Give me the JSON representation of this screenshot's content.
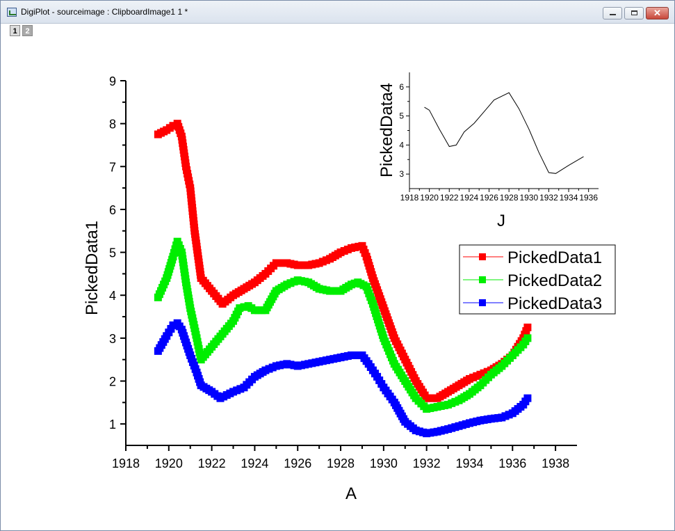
{
  "window": {
    "title": "DigiPlot - sourceimage : ClipboardImage1 1 *",
    "close_glyph": "✕",
    "page_tabs": [
      "1",
      "2"
    ]
  },
  "colors": {
    "PickedData1": "#ff0000",
    "PickedData2": "#00ee00",
    "PickedData3": "#0000ff",
    "PickedData4": "#000000"
  },
  "chart_data": [
    {
      "type": "line",
      "xlabel": "A",
      "ylabel": "PickedData1",
      "xlim": [
        1918,
        1939
      ],
      "ylim": [
        0.5,
        9
      ],
      "xticks": [
        1918,
        1920,
        1922,
        1924,
        1926,
        1928,
        1930,
        1932,
        1934,
        1936,
        1938
      ],
      "yticks": [
        1,
        2,
        3,
        4,
        5,
        6,
        7,
        8,
        9
      ],
      "legend": "right",
      "marker": "square",
      "series": [
        {
          "name": "PickedData1",
          "x": [
            1919.5,
            1919.9,
            1920.2,
            1920.4,
            1920.6,
            1920.8,
            1921.0,
            1921.2,
            1921.5,
            1922.0,
            1922.5,
            1923.0,
            1923.5,
            1924.0,
            1924.5,
            1925.0,
            1925.5,
            1926.0,
            1926.5,
            1927.0,
            1927.5,
            1928.0,
            1928.5,
            1929.0,
            1929.2,
            1929.5,
            1930.0,
            1930.5,
            1931.0,
            1931.5,
            1932.0,
            1932.5,
            1933.0,
            1933.5,
            1934.0,
            1934.5,
            1935.0,
            1935.5,
            1936.0,
            1936.5,
            1936.7
          ],
          "y": [
            7.75,
            7.85,
            7.95,
            8.0,
            7.7,
            7.0,
            6.5,
            5.5,
            4.4,
            4.1,
            3.8,
            4.0,
            4.15,
            4.3,
            4.5,
            4.75,
            4.75,
            4.7,
            4.7,
            4.75,
            4.85,
            5.0,
            5.1,
            5.15,
            4.9,
            4.4,
            3.7,
            3.0,
            2.5,
            2.0,
            1.6,
            1.6,
            1.75,
            1.9,
            2.05,
            2.15,
            2.25,
            2.4,
            2.6,
            3.0,
            3.25
          ]
        },
        {
          "name": "PickedData2",
          "x": [
            1919.5,
            1919.9,
            1920.2,
            1920.4,
            1920.6,
            1920.8,
            1921.0,
            1921.3,
            1921.5,
            1922.0,
            1922.5,
            1923.0,
            1923.3,
            1923.7,
            1924.0,
            1924.5,
            1925.0,
            1925.5,
            1926.0,
            1926.5,
            1927.0,
            1927.5,
            1928.0,
            1928.5,
            1928.8,
            1929.2,
            1929.5,
            1930.0,
            1930.5,
            1931.0,
            1931.5,
            1932.0,
            1932.5,
            1933.0,
            1933.5,
            1934.0,
            1934.5,
            1935.0,
            1935.5,
            1936.0,
            1936.5,
            1936.7
          ],
          "y": [
            3.95,
            4.4,
            4.9,
            5.25,
            5.0,
            4.3,
            3.7,
            3.0,
            2.5,
            2.8,
            3.1,
            3.4,
            3.7,
            3.75,
            3.65,
            3.65,
            4.1,
            4.25,
            4.35,
            4.3,
            4.15,
            4.1,
            4.1,
            4.25,
            4.3,
            4.2,
            3.8,
            3.0,
            2.4,
            2.0,
            1.6,
            1.35,
            1.4,
            1.45,
            1.55,
            1.7,
            1.9,
            2.15,
            2.35,
            2.6,
            2.85,
            3.0
          ]
        },
        {
          "name": "PickedData3",
          "x": [
            1919.5,
            1919.9,
            1920.2,
            1920.4,
            1920.6,
            1920.8,
            1921.0,
            1921.3,
            1921.5,
            1922.0,
            1922.4,
            1923.0,
            1923.5,
            1924.0,
            1924.5,
            1925.0,
            1925.5,
            1926.0,
            1926.5,
            1927.0,
            1927.5,
            1928.0,
            1928.5,
            1929.0,
            1929.3,
            1929.7,
            1930.0,
            1930.5,
            1931.0,
            1931.5,
            1932.0,
            1932.5,
            1933.0,
            1933.5,
            1934.0,
            1934.5,
            1935.0,
            1935.5,
            1936.0,
            1936.5,
            1936.7
          ],
          "y": [
            2.7,
            3.05,
            3.3,
            3.35,
            3.2,
            2.9,
            2.6,
            2.2,
            1.9,
            1.75,
            1.6,
            1.75,
            1.85,
            2.1,
            2.25,
            2.35,
            2.4,
            2.35,
            2.4,
            2.45,
            2.5,
            2.55,
            2.6,
            2.6,
            2.4,
            2.1,
            1.85,
            1.5,
            1.05,
            0.85,
            0.78,
            0.82,
            0.88,
            0.95,
            1.02,
            1.08,
            1.12,
            1.15,
            1.25,
            1.45,
            1.6
          ]
        }
      ]
    },
    {
      "type": "line",
      "xlabel": "J",
      "ylabel": "PickedData4",
      "xlim": [
        1918,
        1937
      ],
      "ylim": [
        2.5,
        6.5
      ],
      "xticks": [
        1918,
        1920,
        1922,
        1924,
        1926,
        1928,
        1930,
        1932,
        1934,
        1936
      ],
      "yticks": [
        3,
        4,
        5,
        6
      ],
      "series": [
        {
          "name": "PickedData4",
          "x": [
            1919.5,
            1920.0,
            1921.0,
            1922.0,
            1922.7,
            1923.5,
            1924.5,
            1925.5,
            1926.5,
            1928.0,
            1929.0,
            1930.0,
            1931.0,
            1932.0,
            1932.7,
            1934.0,
            1935.5
          ],
          "y": [
            5.3,
            5.2,
            4.55,
            3.95,
            4.0,
            4.45,
            4.75,
            5.15,
            5.55,
            5.8,
            5.25,
            4.55,
            3.75,
            3.05,
            3.02,
            3.3,
            3.6
          ]
        }
      ]
    }
  ]
}
